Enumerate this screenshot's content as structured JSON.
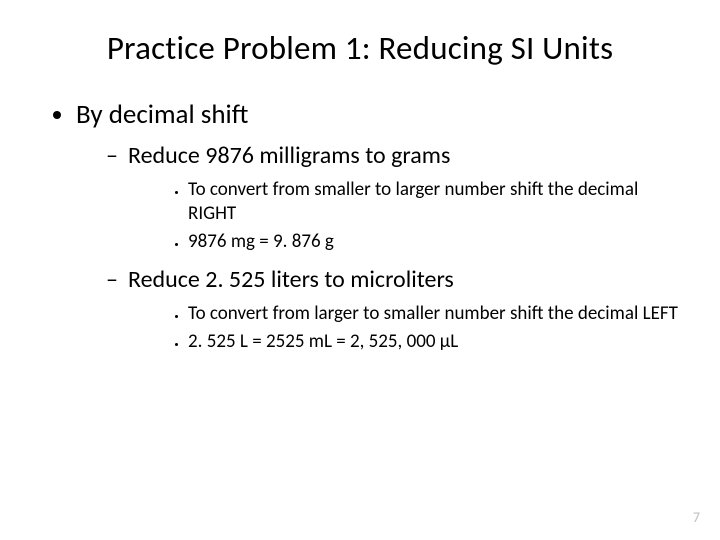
{
  "slide": {
    "title": "Practice Problem 1: Reducing SI Units",
    "page_number": "7",
    "colors": {
      "background": "#ffffff",
      "text": "#000000",
      "page_number": "#bfbfbf"
    },
    "font_family": "Calibri",
    "bullets": {
      "lvl1": [
        {
          "text": "By decimal shift",
          "children": [
            {
              "text": "Reduce 9876 milligrams to grams",
              "children": [
                {
                  "text": "To convert from smaller to larger number shift the decimal RIGHT"
                },
                {
                  "text": "9876 mg = 9. 876 g"
                }
              ]
            },
            {
              "text": "Reduce 2. 525 liters to microliters",
              "children": [
                {
                  "text": "To convert from larger to smaller number shift the decimal LEFT"
                },
                {
                  "text": "2. 525 L = 2525 mL = 2, 525, 000 µL"
                }
              ]
            }
          ]
        }
      ]
    }
  }
}
